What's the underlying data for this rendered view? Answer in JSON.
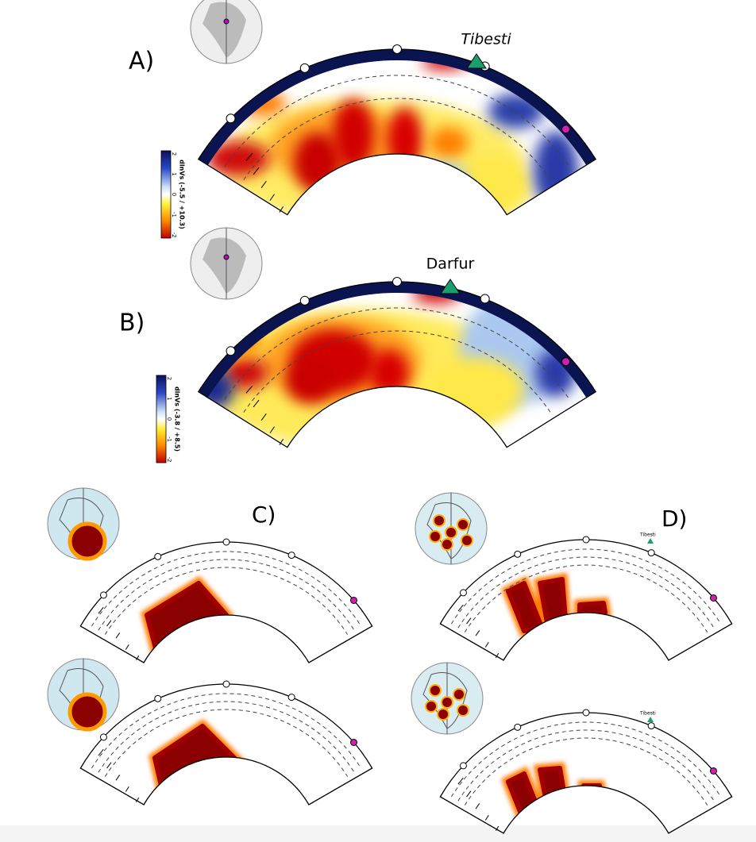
{
  "panels": [
    {
      "label": "A)",
      "volcano": "Tibesti",
      "colorbar": {
        "label": "dlnVs (-5.5 / +10.3)",
        "ticks": [
          2,
          1,
          0,
          -1,
          -2
        ]
      }
    },
    {
      "label": "B)",
      "volcano": "Darfur",
      "colorbar": {
        "label": "dlnVs (-3.8 / +8.5)",
        "ticks": [
          2,
          1,
          0,
          -1,
          -2
        ]
      }
    },
    {
      "label": "C)"
    },
    {
      "label": "D)",
      "volcano_labels": [
        "Tibesti",
        "Tibesti"
      ]
    }
  ]
}
